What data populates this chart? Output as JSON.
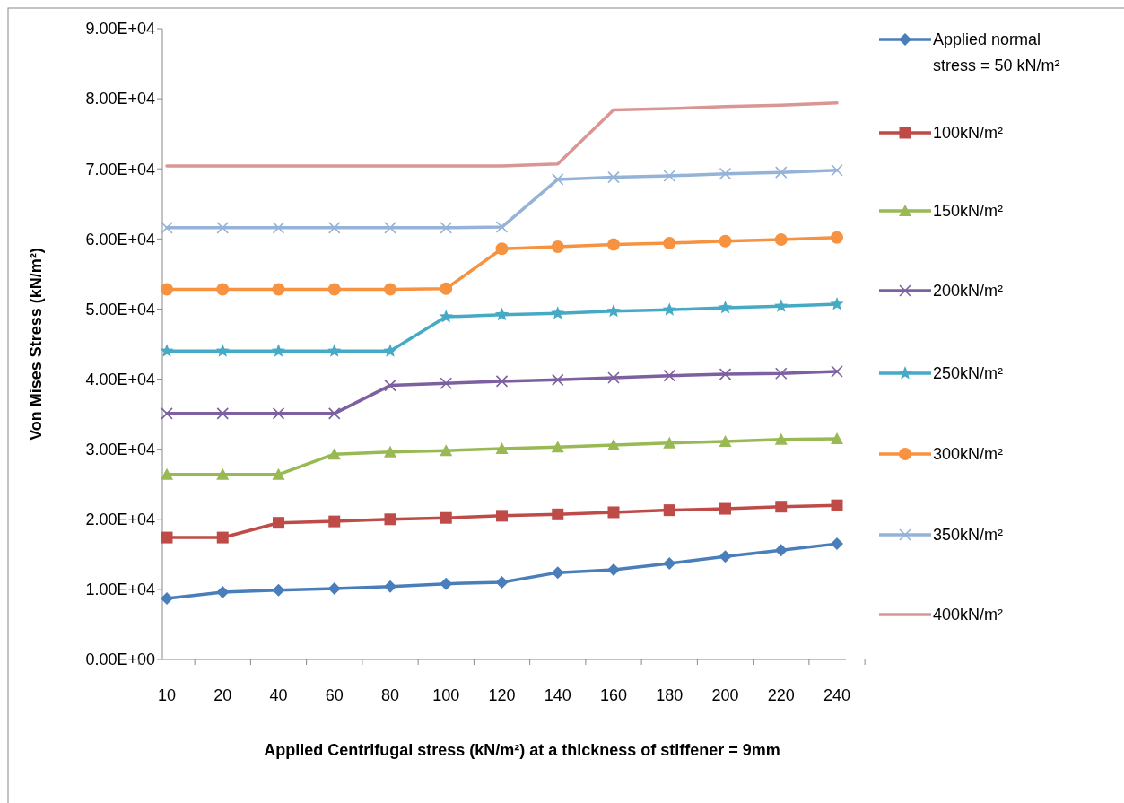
{
  "chart_data": {
    "type": "line",
    "xlabel": "Applied Centrifugal stress (kN/m²) at a thickness of stiffener = 9mm",
    "ylabel": "Von Mises Stress (kN/m²)",
    "categories": [
      "10",
      "20",
      "40",
      "60",
      "80",
      "100",
      "120",
      "140",
      "160",
      "180",
      "200",
      "220",
      "240"
    ],
    "ylim": [
      0,
      90000
    ],
    "yticks": [
      {
        "value": 0,
        "label": "0.00E+00"
      },
      {
        "value": 10000,
        "label": "1.00E+04"
      },
      {
        "value": 20000,
        "label": "2.00E+04"
      },
      {
        "value": 30000,
        "label": "3.00E+04"
      },
      {
        "value": 40000,
        "label": "4.00E+04"
      },
      {
        "value": 50000,
        "label": "5.00E+04"
      },
      {
        "value": 60000,
        "label": "6.00E+04"
      },
      {
        "value": 70000,
        "label": "7.00E+04"
      },
      {
        "value": 80000,
        "label": "8.00E+04"
      },
      {
        "value": 90000,
        "label": "9.00E+04"
      }
    ],
    "grid": false,
    "legend": "right",
    "line_style": "solid",
    "series": [
      {
        "name": "Applied normal stress = 50 kN/m²",
        "color": "#4a7ebb",
        "marker": "diamond",
        "values": [
          8700,
          9600,
          9900,
          10100,
          10400,
          10800,
          11000,
          12400,
          12800,
          13700,
          14700,
          15600,
          16500
        ]
      },
      {
        "name": "100kN/m²",
        "color": "#be4b48",
        "marker": "square",
        "values": [
          17400,
          17400,
          19500,
          19700,
          20000,
          20200,
          20500,
          20700,
          21000,
          21300,
          21500,
          21800,
          22000
        ]
      },
      {
        "name": "150kN/m²",
        "color": "#98b954",
        "marker": "triangle",
        "values": [
          26400,
          26400,
          26400,
          29300,
          29600,
          29800,
          30100,
          30300,
          30600,
          30900,
          31100,
          31400,
          31500
        ]
      },
      {
        "name": "200kN/m²",
        "color": "#7d60a0",
        "marker": "cross",
        "values": [
          35100,
          35100,
          35100,
          35100,
          39100,
          39400,
          39700,
          39900,
          40200,
          40500,
          40700,
          40800,
          41100
        ]
      },
      {
        "name": "250kN/m²",
        "color": "#46aac5",
        "marker": "star",
        "values": [
          44000,
          44000,
          44000,
          44000,
          44000,
          48900,
          49200,
          49400,
          49700,
          49900,
          50200,
          50400,
          50700
        ]
      },
      {
        "name": "300kN/m²",
        "color": "#f69240",
        "marker": "circle",
        "values": [
          52800,
          52800,
          52800,
          52800,
          52800,
          52900,
          58600,
          58900,
          59200,
          59400,
          59700,
          59900,
          60200
        ]
      },
      {
        "name": "350kN/m²",
        "color": "#95b3d7",
        "marker": "cross",
        "values": [
          61600,
          61600,
          61600,
          61600,
          61600,
          61600,
          61700,
          68500,
          68800,
          69000,
          69300,
          69500,
          69800
        ]
      },
      {
        "name": "400kN/m²",
        "color": "#d99694",
        "marker": "none",
        "values": [
          70400,
          70400,
          70400,
          70400,
          70400,
          70400,
          70400,
          70700,
          78400,
          78600,
          78900,
          79100,
          79400
        ]
      }
    ]
  }
}
